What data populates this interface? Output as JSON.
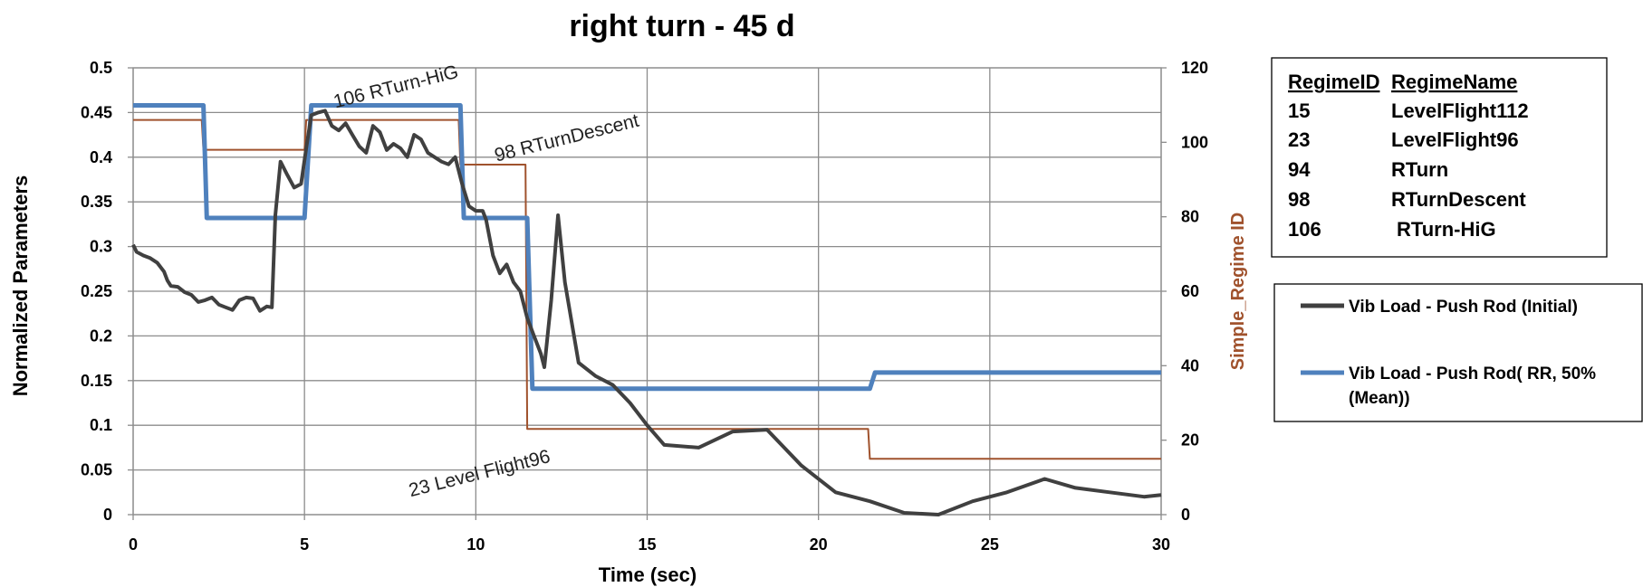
{
  "chart_data": {
    "type": "line",
    "title": "right turn - 45 d",
    "xlabel": "Time (sec)",
    "ylabel": "Normalized Parameters",
    "y2label": "Simple_Regime ID",
    "xlim": [
      0,
      30
    ],
    "ylim": [
      0,
      0.5
    ],
    "y2lim": [
      0,
      120
    ],
    "x_ticks": [
      0,
      5,
      10,
      15,
      20,
      25,
      30
    ],
    "y_ticks": [
      0,
      0.05,
      0.1,
      0.15,
      0.2,
      0.25,
      0.3,
      0.35,
      0.4,
      0.45,
      0.5
    ],
    "y_tick_labels": [
      "0",
      "0.05",
      "0.1",
      "0.15",
      "0.2",
      "0.25",
      "0.3",
      "0.35",
      "0.4",
      "0.45",
      "0.5"
    ],
    "y2_ticks": [
      0,
      20,
      40,
      60,
      80,
      100,
      120
    ],
    "grid": true,
    "legend_position": "right",
    "series": [
      {
        "name": "Vib Load - Push Rod (Initial)",
        "axis": "left",
        "color": "#404040",
        "x": [
          0,
          0.1,
          0.3,
          0.5,
          0.7,
          0.9,
          1.0,
          1.1,
          1.3,
          1.5,
          1.7,
          1.9,
          2.1,
          2.3,
          2.5,
          2.7,
          2.9,
          3.1,
          3.3,
          3.5,
          3.7,
          3.9,
          4.05,
          4.15,
          4.3,
          4.5,
          4.7,
          4.9,
          5.05,
          5.2,
          5.4,
          5.6,
          5.8,
          6.0,
          6.2,
          6.4,
          6.6,
          6.8,
          7.0,
          7.2,
          7.4,
          7.6,
          7.8,
          8.0,
          8.2,
          8.4,
          8.6,
          8.8,
          9.0,
          9.2,
          9.4,
          9.6,
          9.8,
          10.0,
          10.2,
          10.3,
          10.5,
          10.7,
          10.9,
          11.1,
          11.3,
          11.5,
          11.7,
          11.9,
          12.0,
          12.2,
          12.4,
          12.6,
          13.0,
          13.5,
          14.0,
          14.5,
          15.0,
          15.5,
          16.5,
          17.5,
          18.5,
          19.5,
          20.5,
          21.5,
          22.5,
          23.5,
          24.5,
          25.5,
          26.6,
          27.5,
          28.5,
          29.5,
          30.0
        ],
        "values": [
          0.302,
          0.294,
          0.29,
          0.287,
          0.282,
          0.272,
          0.262,
          0.256,
          0.255,
          0.249,
          0.246,
          0.238,
          0.24,
          0.243,
          0.235,
          0.232,
          0.229,
          0.24,
          0.243,
          0.242,
          0.228,
          0.233,
          0.232,
          0.335,
          0.395,
          0.38,
          0.366,
          0.37,
          0.41,
          0.447,
          0.45,
          0.452,
          0.435,
          0.43,
          0.438,
          0.425,
          0.412,
          0.405,
          0.435,
          0.428,
          0.408,
          0.415,
          0.41,
          0.4,
          0.425,
          0.42,
          0.405,
          0.4,
          0.395,
          0.392,
          0.4,
          0.37,
          0.345,
          0.34,
          0.34,
          0.33,
          0.29,
          0.27,
          0.28,
          0.26,
          0.25,
          0.22,
          0.2,
          0.18,
          0.165,
          0.24,
          0.335,
          0.26,
          0.17,
          0.155,
          0.145,
          0.125,
          0.1,
          0.078,
          0.075,
          0.093,
          0.095,
          0.055,
          0.025,
          0.015,
          0.002,
          0.0,
          0.015,
          0.025,
          0.04,
          0.03,
          0.025,
          0.02,
          0.022
        ]
      },
      {
        "name": "Vib Load - Push Rod( RR, 50% (Mean))",
        "axis": "left",
        "color": "#4f81bd",
        "x": [
          0,
          2.05,
          2.15,
          5.0,
          5.2,
          9.55,
          9.65,
          11.5,
          11.65,
          21.5,
          21.65,
          30
        ],
        "values": [
          0.458,
          0.458,
          0.332,
          0.332,
          0.458,
          0.458,
          0.332,
          0.332,
          0.141,
          0.141,
          0.159,
          0.159
        ]
      },
      {
        "name": "Simple_Regime ID",
        "axis": "right",
        "color": "#a0522d",
        "x": [
          0,
          2.0,
          2.05,
          5.0,
          5.05,
          9.5,
          9.55,
          11.45,
          11.5,
          21.45,
          21.5,
          30
        ],
        "values": [
          106,
          106,
          98,
          98,
          106,
          106,
          94,
          94,
          23,
          23,
          15,
          15
        ]
      }
    ],
    "annotations": [
      {
        "text": "106 RTurn-HiG",
        "x": 5.9,
        "y": 0.455
      },
      {
        "text": "98 RTurnDescent",
        "x": 10.6,
        "y": 0.395
      },
      {
        "text": "23 Level Flight96",
        "x": 8.1,
        "y": 0.02
      }
    ],
    "regime_table": {
      "headers": [
        "RegimeID",
        "RegimeName"
      ],
      "rows": [
        [
          "15",
          "LevelFlight112"
        ],
        [
          "23",
          "LevelFlight96"
        ],
        [
          "94",
          "RTurn"
        ],
        [
          "98",
          "RTurnDescent"
        ],
        [
          "106",
          "RTurn-HiG"
        ]
      ]
    },
    "legend": [
      {
        "lines": [
          "Vib Load - Push Rod (Initial)"
        ],
        "color": "#404040"
      },
      {
        "lines": [
          "Vib Load - Push Rod( RR, 50%",
          "(Mean))"
        ],
        "color": "#4f81bd"
      }
    ]
  }
}
